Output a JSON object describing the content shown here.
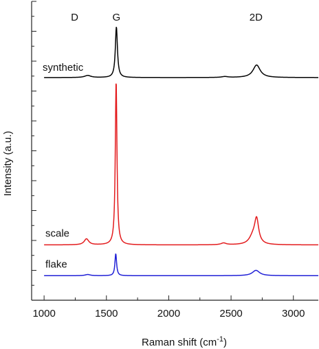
{
  "chart_data": {
    "type": "line",
    "title": "",
    "xlabel": "Raman shift (cm",
    "xlabel_sup": "-1",
    "xlabel_close": ")",
    "ylabel": "Intensity (a.u.)",
    "xlim": [
      900,
      3200
    ],
    "ylim": [
      0,
      1
    ],
    "x_ticks": [
      "1000",
      "1500",
      "2000",
      "2500",
      "3000"
    ],
    "x_tick_values": [
      1000,
      1500,
      2000,
      2500,
      3000
    ],
    "y_tick_labels": false,
    "grid": false,
    "peak_labels": [
      {
        "label": "D",
        "x": 1350
      },
      {
        "label": "G",
        "x": 1580
      },
      {
        "label": "2D",
        "x": 2700
      }
    ],
    "series": [
      {
        "name": "synthetic",
        "color": "#000000",
        "baseline": 0.745,
        "peaks": [
          {
            "x": 1350,
            "height": 0.007,
            "width": 30
          },
          {
            "x": 1580,
            "height": 0.17,
            "width": 10
          },
          {
            "x": 2450,
            "height": 0.003,
            "width": 30
          },
          {
            "x": 2705,
            "height": 0.042,
            "width": 35
          }
        ]
      },
      {
        "name": "scale",
        "color": "#e31a1c",
        "baseline": 0.185,
        "peaks": [
          {
            "x": 1340,
            "height": 0.02,
            "width": 22
          },
          {
            "x": 1578,
            "height": 0.55,
            "width": 8
          },
          {
            "x": 2440,
            "height": 0.006,
            "width": 25
          },
          {
            "x": 2675,
            "height": 0.025,
            "width": 35
          },
          {
            "x": 2705,
            "height": 0.08,
            "width": 20
          }
        ]
      },
      {
        "name": "flake",
        "color": "#1f1fd6",
        "baseline": 0.082,
        "peaks": [
          {
            "x": 1350,
            "height": 0.004,
            "width": 25
          },
          {
            "x": 1575,
            "height": 0.074,
            "width": 8
          },
          {
            "x": 2700,
            "height": 0.018,
            "width": 35
          }
        ]
      }
    ]
  }
}
